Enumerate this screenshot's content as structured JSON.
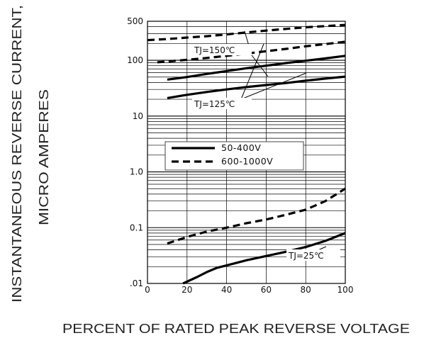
{
  "chart_data": {
    "type": "line",
    "title": "",
    "xlabel": "PERCENT OF RATED PEAK REVERSE VOLTAGE",
    "ylabel_lines": [
      "INSTANTANEOUS REVERSE CURRENT,",
      "MICRO AMPERES"
    ],
    "y_scale": "log",
    "xlim": [
      0,
      100
    ],
    "ylim": [
      0.01,
      500
    ],
    "x_ticks": [
      {
        "value": 0,
        "label": "0"
      },
      {
        "value": 20,
        "label": "20"
      },
      {
        "value": 40,
        "label": "40"
      },
      {
        "value": 60,
        "label": "60"
      },
      {
        "value": 80,
        "label": "80"
      },
      {
        "value": 100,
        "label": "100"
      }
    ],
    "y_ticks": [
      {
        "value": 0.01,
        "label": ".01"
      },
      {
        "value": 0.1,
        "label": "0.1"
      },
      {
        "value": 1,
        "label": "1.0"
      },
      {
        "value": 10,
        "label": "10"
      },
      {
        "value": 100,
        "label": "100"
      },
      {
        "value": 500,
        "label": "500"
      }
    ],
    "grid": true,
    "legend": {
      "placement": "center-left",
      "entries": [
        {
          "label": "50-400V",
          "style": "solid"
        },
        {
          "label": "600-1000V",
          "style": "dashed"
        }
      ]
    },
    "annotations": [
      {
        "text": "TJ=150℃",
        "points_to": [
          "600-1000V @150C",
          "50-400V @150C"
        ]
      },
      {
        "text": "TJ=125℃",
        "points_to": [
          "600-1000V @125C",
          "50-400V @125C"
        ]
      },
      {
        "text": "TJ=25℃",
        "points_to": [
          "50-400V @25C"
        ]
      }
    ],
    "series": [
      {
        "key": "d150",
        "style": "dashed",
        "x": [
          0,
          10,
          20,
          30,
          40,
          50,
          60,
          70,
          80,
          90,
          100
        ],
        "y": [
          230,
          240,
          255,
          270,
          290,
          315,
          340,
          365,
          390,
          410,
          430
        ]
      },
      {
        "key": "d125",
        "style": "dashed",
        "x": [
          5,
          10,
          20,
          30,
          40,
          50,
          60,
          70,
          80,
          90,
          100
        ],
        "y": [
          92,
          95,
          102,
          110,
          120,
          132,
          145,
          160,
          178,
          195,
          215
        ]
      },
      {
        "key": "s150",
        "style": "solid",
        "x": [
          10,
          20,
          30,
          40,
          50,
          60,
          70,
          80,
          90,
          100
        ],
        "y": [
          45,
          50,
          57,
          64,
          72,
          80,
          89,
          98,
          108,
          120
        ]
      },
      {
        "key": "s125",
        "style": "solid",
        "x": [
          10,
          20,
          30,
          40,
          50,
          60,
          70,
          80,
          90,
          100
        ],
        "y": [
          21,
          24,
          27,
          30,
          33,
          36,
          39,
          43,
          47,
          51
        ]
      },
      {
        "key": "d25",
        "style": "dashed",
        "x": [
          10,
          20,
          30,
          40,
          50,
          60,
          70,
          80,
          90,
          100
        ],
        "y": [
          0.052,
          0.068,
          0.085,
          0.1,
          0.12,
          0.14,
          0.17,
          0.21,
          0.3,
          0.5
        ]
      },
      {
        "key": "s25",
        "style": "solid",
        "x": [
          18,
          25,
          30,
          35,
          40,
          50,
          60,
          70,
          80,
          90,
          100
        ],
        "y": [
          0.01,
          0.013,
          0.016,
          0.019,
          0.021,
          0.026,
          0.031,
          0.037,
          0.045,
          0.058,
          0.08
        ]
      }
    ]
  }
}
